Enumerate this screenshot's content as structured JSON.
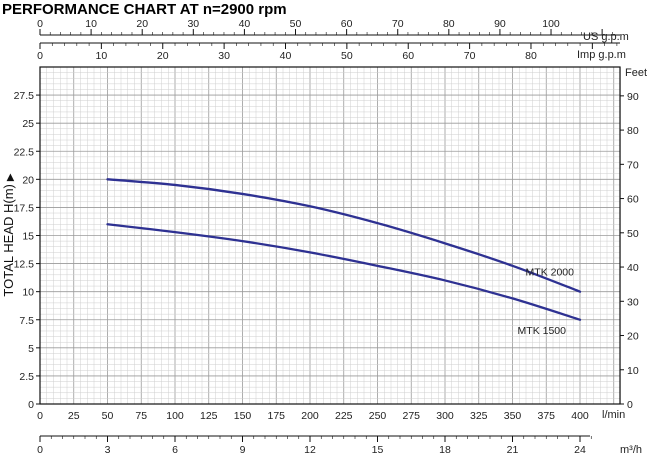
{
  "chart_data": {
    "type": "line",
    "title": "PERFORMANCE CHART AT n=2900 rpm",
    "ylabel": "TOTAL HEAD H(m)",
    "y_tick_labels": [
      "0",
      "2.5",
      "5",
      "7.5",
      "10",
      "12.5",
      "15",
      "17.5",
      "20",
      "22.5",
      "25",
      "27.5"
    ],
    "ylim": [
      0,
      30
    ],
    "right_axis": {
      "label": "Feet",
      "tick_labels": [
        "0",
        "10",
        "20",
        "30",
        "40",
        "50",
        "60",
        "70",
        "80",
        "90"
      ]
    },
    "x_axis_lmin": {
      "label": "l/min",
      "tick_labels": [
        "0",
        "25",
        "50",
        "75",
        "100",
        "125",
        "150",
        "175",
        "200",
        "225",
        "250",
        "275",
        "300",
        "325",
        "350",
        "375",
        "400"
      ],
      "range": [
        0,
        400
      ]
    },
    "x_axis_m3h": {
      "label": "m³/h",
      "tick_labels": [
        "0",
        "3",
        "6",
        "9",
        "12",
        "15",
        "18",
        "21",
        "24"
      ]
    },
    "x_axis_usgpm": {
      "label": "US g.p.m",
      "tick_labels": [
        "0",
        "10",
        "20",
        "30",
        "40",
        "50",
        "60",
        "70",
        "80",
        "90",
        "100"
      ]
    },
    "x_axis_impgpm": {
      "label": "Imp g.p.m",
      "tick_labels": [
        "0",
        "10",
        "20",
        "30",
        "40",
        "50",
        "60",
        "70",
        "80"
      ]
    },
    "grid": true,
    "series": [
      {
        "name": "MTK 2000",
        "color": "#2e3192",
        "x": [
          50,
          100,
          150,
          200,
          250,
          300,
          350,
          400
        ],
        "y": [
          20,
          19.5,
          18.7,
          17.6,
          16.1,
          14.3,
          12.3,
          10
        ]
      },
      {
        "name": "MTK 1500",
        "color": "#2e3192",
        "x": [
          50,
          100,
          150,
          200,
          250,
          300,
          350,
          400
        ],
        "y": [
          16,
          15.3,
          14.5,
          13.5,
          12.3,
          11,
          9.4,
          7.5
        ]
      }
    ]
  }
}
